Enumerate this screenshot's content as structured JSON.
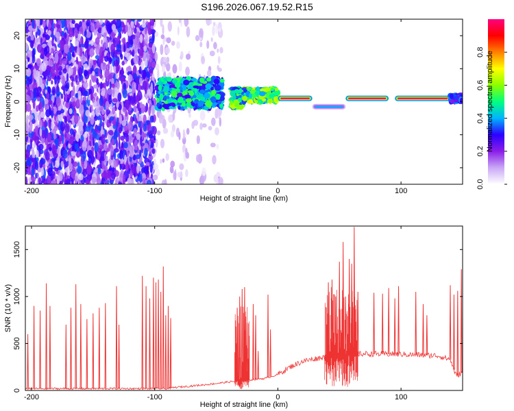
{
  "title": "S196.2026.067.19.52.R15",
  "chart_data": [
    {
      "type": "heatmap",
      "name": "spectrogram",
      "xlabel": "Height of straight line (km)",
      "ylabel": "Frequency (Hz)",
      "xlim": [
        -205,
        150
      ],
      "ylim": [
        -25,
        25
      ],
      "xticks": [
        -200,
        -100,
        0,
        100
      ],
      "yticks": [
        -20,
        -10,
        0,
        10,
        20
      ],
      "colorbar": {
        "label": "Normalized spectral amplitude",
        "range": [
          0.0,
          1.0
        ],
        "ticks": [
          "0.0",
          "0.2",
          "0.4",
          "0.6",
          "0.8"
        ],
        "colors": [
          "#ffffff",
          "#c9a8f5",
          "#8b1ee8",
          "#2b00ff",
          "#00b4ff",
          "#00ff80",
          "#8cff00",
          "#ffff00",
          "#ff8000",
          "#ff0000",
          "#ff0080"
        ]
      },
      "regions": [
        {
          "x": [
            -205,
            -100
          ],
          "kind": "noise",
          "density": 0.55,
          "amp": [
            0.05,
            0.35
          ]
        },
        {
          "x": [
            -100,
            -45
          ],
          "kind": "noise",
          "density": 0.08,
          "amp": [
            0.02,
            0.12
          ]
        },
        {
          "x": [
            -98,
            -45
          ],
          "kind": "signal",
          "freq": [
            -2,
            7
          ],
          "amp": [
            0.25,
            0.55
          ]
        },
        {
          "x": [
            -38,
            -28
          ],
          "kind": "signal",
          "freq": [
            -2,
            4
          ],
          "amp": [
            0.3,
            0.65
          ]
        },
        {
          "x": [
            -28,
            0
          ],
          "kind": "signal",
          "freq": [
            0,
            4
          ],
          "amp": [
            0.3,
            0.7
          ]
        },
        {
          "x": [
            0,
            28
          ],
          "kind": "line",
          "freq": 1,
          "amp": [
            0.85,
            1.0
          ]
        },
        {
          "x": [
            28,
            55
          ],
          "kind": "line",
          "freq": -1.5,
          "amp": [
            0.2,
            0.4
          ]
        },
        {
          "x": [
            55,
            90
          ],
          "kind": "line",
          "freq": 1,
          "amp": [
            0.85,
            1.0
          ]
        },
        {
          "x": [
            95,
            140
          ],
          "kind": "line",
          "freq": 1,
          "amp": [
            0.85,
            1.0
          ]
        },
        {
          "x": [
            140,
            150
          ],
          "kind": "signal",
          "freq": [
            0,
            2
          ],
          "amp": [
            0.2,
            0.4
          ]
        }
      ]
    },
    {
      "type": "line",
      "name": "snr",
      "xlabel": "Height of straight line (km)",
      "ylabel": "SNR (10 * v/v)",
      "xlim": [
        -205,
        150
      ],
      "ylim": [
        0,
        1750
      ],
      "xticks": [
        -200,
        -100,
        0,
        100
      ],
      "yticks": [
        0,
        500,
        1000,
        1500
      ],
      "color": "#ee3333",
      "baseline": [
        {
          "x": -205,
          "y": 20
        },
        {
          "x": -90,
          "y": 20
        },
        {
          "x": -85,
          "y": 30
        },
        {
          "x": -60,
          "y": 60
        },
        {
          "x": -40,
          "y": 90
        },
        {
          "x": -25,
          "y": 110
        },
        {
          "x": -10,
          "y": 130
        },
        {
          "x": 0,
          "y": 170
        },
        {
          "x": 10,
          "y": 250
        },
        {
          "x": 20,
          "y": 310
        },
        {
          "x": 35,
          "y": 350
        },
        {
          "x": 55,
          "y": 380
        },
        {
          "x": 70,
          "y": 390
        },
        {
          "x": 100,
          "y": 385
        },
        {
          "x": 130,
          "y": 370
        },
        {
          "x": 140,
          "y": 330
        },
        {
          "x": 145,
          "y": 150
        },
        {
          "x": 150,
          "y": 200
        }
      ],
      "spikes": [
        {
          "x": -203,
          "y": 600
        },
        {
          "x": -198,
          "y": 900
        },
        {
          "x": -193,
          "y": 850
        },
        {
          "x": -188,
          "y": 1140
        },
        {
          "x": -185,
          "y": 900
        },
        {
          "x": -172,
          "y": 700
        },
        {
          "x": -168,
          "y": 880
        },
        {
          "x": -164,
          "y": 1130
        },
        {
          "x": -160,
          "y": 920
        },
        {
          "x": -155,
          "y": 760
        },
        {
          "x": -150,
          "y": 820
        },
        {
          "x": -145,
          "y": 880
        },
        {
          "x": -140,
          "y": 930
        },
        {
          "x": -131,
          "y": 1110
        },
        {
          "x": -129,
          "y": 700
        },
        {
          "x": -110,
          "y": 1220
        },
        {
          "x": -107,
          "y": 1110
        },
        {
          "x": -104,
          "y": 980
        },
        {
          "x": -101,
          "y": 1200
        },
        {
          "x": -99,
          "y": 1150
        },
        {
          "x": -97,
          "y": 1180
        },
        {
          "x": -95,
          "y": 1050
        },
        {
          "x": -93,
          "y": 1320
        },
        {
          "x": -91,
          "y": 800
        },
        {
          "x": -89,
          "y": 900
        },
        {
          "x": -87,
          "y": 770
        },
        {
          "x": -33,
          "y": 880
        },
        {
          "x": -31,
          "y": 1000
        },
        {
          "x": -29,
          "y": 1080
        },
        {
          "x": -27,
          "y": 1100
        },
        {
          "x": -25,
          "y": 720
        },
        {
          "x": -20,
          "y": 920
        },
        {
          "x": -18,
          "y": 800
        },
        {
          "x": -16,
          "y": 420
        },
        {
          "x": -8,
          "y": 1020
        },
        {
          "x": -6,
          "y": 650
        },
        {
          "x": 41,
          "y": 1150
        },
        {
          "x": 44,
          "y": 1180
        },
        {
          "x": 47,
          "y": 1000
        },
        {
          "x": 50,
          "y": 1370
        },
        {
          "x": 53,
          "y": 1580
        },
        {
          "x": 55,
          "y": 1000
        },
        {
          "x": 58,
          "y": 1400
        },
        {
          "x": 60,
          "y": 1350
        },
        {
          "x": 62,
          "y": 1740
        },
        {
          "x": 65,
          "y": 1050
        },
        {
          "x": 78,
          "y": 1040
        },
        {
          "x": 85,
          "y": 1030
        },
        {
          "x": 90,
          "y": 1090
        },
        {
          "x": 95,
          "y": 980
        },
        {
          "x": 98,
          "y": 1110
        },
        {
          "x": 112,
          "y": 1050
        },
        {
          "x": 118,
          "y": 920
        },
        {
          "x": 121,
          "y": 800
        },
        {
          "x": 140,
          "y": 1120
        },
        {
          "x": 143,
          "y": 1020
        },
        {
          "x": 146,
          "y": 1060
        },
        {
          "x": 149,
          "y": 1290
        }
      ],
      "dense_bursts": [
        {
          "x": [
            -35,
            -23
          ],
          "max": 900
        },
        {
          "x": [
            38,
            65
          ],
          "max": 1100
        }
      ]
    }
  ]
}
